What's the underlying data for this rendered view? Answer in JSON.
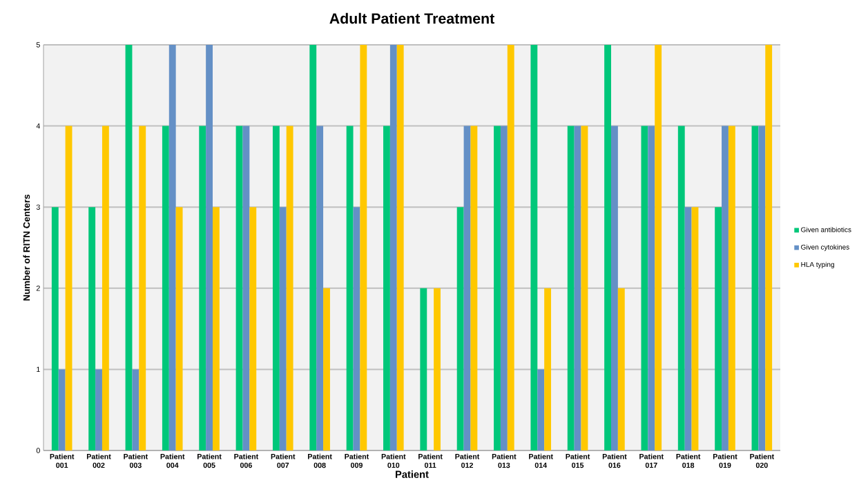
{
  "chart_data": {
    "type": "bar",
    "title": "Adult Patient Treatment",
    "xlabel": "Patient",
    "ylabel": "Number of RITN Centers",
    "categories": [
      "Patient 001",
      "Patient 002",
      "Patient 003",
      "Patient 004",
      "Patient 005",
      "Patient 006",
      "Patient 007",
      "Patient 008",
      "Patient 009",
      "Patient 010",
      "Patient 011",
      "Patient 012",
      "Patient 013",
      "Patient 014",
      "Patient 015",
      "Patient 016",
      "Patient 017",
      "Patient 018",
      "Patient 019",
      "Patient 020"
    ],
    "series": [
      {
        "name": "Given antibiotics",
        "color": "#00c77a",
        "values": [
          3,
          3,
          5,
          4,
          4,
          4,
          4,
          5,
          4,
          4,
          2,
          3,
          4,
          5,
          4,
          5,
          4,
          4,
          3,
          4
        ]
      },
      {
        "name": "Given cytokines",
        "color": "#6490c6",
        "values": [
          1,
          1,
          1,
          5,
          5,
          4,
          3,
          4,
          3,
          5,
          0,
          4,
          4,
          1,
          4,
          4,
          4,
          3,
          4,
          4
        ]
      },
      {
        "name": "HLA typing",
        "color": "#ffc800",
        "values": [
          4,
          4,
          4,
          3,
          3,
          3,
          4,
          2,
          5,
          5,
          2,
          4,
          5,
          2,
          4,
          2,
          5,
          3,
          4,
          5
        ]
      }
    ],
    "ylim": [
      0,
      5
    ],
    "yticks": [
      0,
      1,
      2,
      3,
      4,
      5
    ],
    "grid": "y",
    "legend": "right"
  }
}
